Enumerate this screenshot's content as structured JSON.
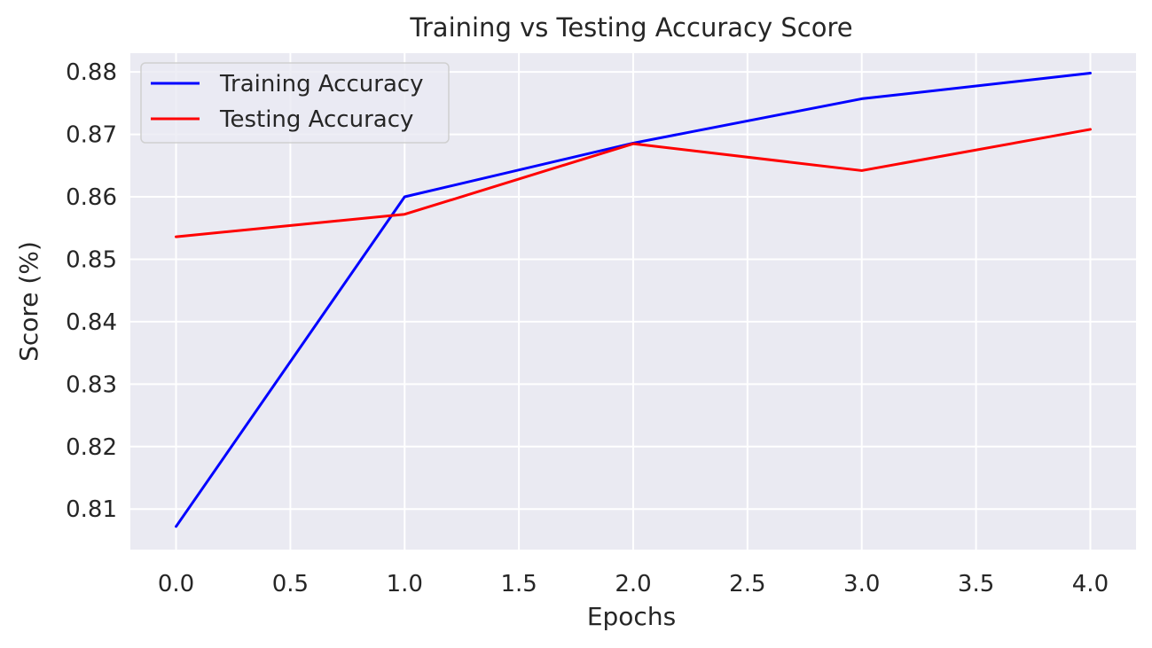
{
  "chart_data": {
    "type": "line",
    "title": "Training vs Testing Accuracy Score",
    "xlabel": "Epochs",
    "ylabel": "Score (%)",
    "xlim": [
      -0.2,
      4.2
    ],
    "ylim": [
      0.8035,
      0.883
    ],
    "xticks": [
      0.0,
      0.5,
      1.0,
      1.5,
      2.0,
      2.5,
      3.0,
      3.5,
      4.0
    ],
    "xtick_labels": [
      "0.0",
      "0.5",
      "1.0",
      "1.5",
      "2.0",
      "2.5",
      "3.0",
      "3.5",
      "4.0"
    ],
    "yticks": [
      0.81,
      0.82,
      0.83,
      0.84,
      0.85,
      0.86,
      0.87,
      0.88
    ],
    "ytick_labels": [
      "0.81",
      "0.82",
      "0.83",
      "0.84",
      "0.85",
      "0.86",
      "0.87",
      "0.88"
    ],
    "grid": true,
    "legend_position": "upper-left",
    "x": [
      0,
      1,
      2,
      3,
      4
    ],
    "series": [
      {
        "name": "Training Accuracy",
        "color": "#0000ff",
        "values": [
          0.8072,
          0.86,
          0.8686,
          0.8757,
          0.8798
        ]
      },
      {
        "name": "Testing Accuracy",
        "color": "#ff0000",
        "values": [
          0.8536,
          0.8572,
          0.8685,
          0.8642,
          0.8708
        ]
      }
    ],
    "colors": {
      "plot_background": "#eaeaf2",
      "grid": "#ffffff",
      "text": "#262626"
    }
  }
}
